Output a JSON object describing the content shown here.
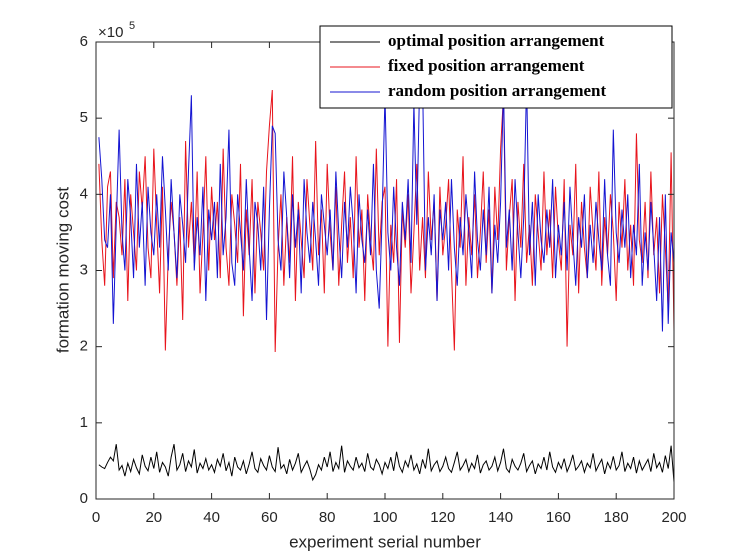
{
  "chart_data": {
    "type": "line",
    "xlabel": "experiment serial number",
    "ylabel": "formation moving cost",
    "yscale_base": "×10",
    "yscale_exponent": "5",
    "xlim": [
      0,
      200
    ],
    "xticks": [
      0,
      20,
      40,
      60,
      80,
      100,
      120,
      140,
      160,
      180,
      200
    ],
    "ylim": [
      0,
      6
    ],
    "yticks": [
      0,
      1,
      2,
      3,
      4,
      5,
      6
    ],
    "grid": false,
    "legend": "upper right",
    "x": [
      1,
      2,
      3,
      4,
      5,
      6,
      7,
      8,
      9,
      10,
      11,
      12,
      13,
      14,
      15,
      16,
      17,
      18,
      19,
      20,
      21,
      22,
      23,
      24,
      25,
      26,
      27,
      28,
      29,
      30,
      31,
      32,
      33,
      34,
      35,
      36,
      37,
      38,
      39,
      40,
      41,
      42,
      43,
      44,
      45,
      46,
      47,
      48,
      49,
      50,
      51,
      52,
      53,
      54,
      55,
      56,
      57,
      58,
      59,
      60,
      61,
      62,
      63,
      64,
      65,
      66,
      67,
      68,
      69,
      70,
      71,
      72,
      73,
      74,
      75,
      76,
      77,
      78,
      79,
      80,
      81,
      82,
      83,
      84,
      85,
      86,
      87,
      88,
      89,
      90,
      91,
      92,
      93,
      94,
      95,
      96,
      97,
      98,
      99,
      100,
      101,
      102,
      103,
      104,
      105,
      106,
      107,
      108,
      109,
      110,
      111,
      112,
      113,
      114,
      115,
      116,
      117,
      118,
      119,
      120,
      121,
      122,
      123,
      124,
      125,
      126,
      127,
      128,
      129,
      130,
      131,
      132,
      133,
      134,
      135,
      136,
      137,
      138,
      139,
      140,
      141,
      142,
      143,
      144,
      145,
      146,
      147,
      148,
      149,
      150,
      151,
      152,
      153,
      154,
      155,
      156,
      157,
      158,
      159,
      160,
      161,
      162,
      163,
      164,
      165,
      166,
      167,
      168,
      169,
      170,
      171,
      172,
      173,
      174,
      175,
      176,
      177,
      178,
      179,
      180,
      181,
      182,
      183,
      184,
      185,
      186,
      187,
      188,
      189,
      190,
      191,
      192,
      193,
      194,
      195,
      196,
      197,
      198,
      199,
      200
    ],
    "series": [
      {
        "name": "optimal position arrangement",
        "color": "#000000",
        "values": [
          0.45,
          0.42,
          0.4,
          0.48,
          0.55,
          0.5,
          0.72,
          0.38,
          0.44,
          0.3,
          0.47,
          0.36,
          0.52,
          0.41,
          0.33,
          0.58,
          0.43,
          0.37,
          0.55,
          0.4,
          0.62,
          0.35,
          0.48,
          0.42,
          0.3,
          0.55,
          0.72,
          0.38,
          0.45,
          0.6,
          0.36,
          0.5,
          0.42,
          0.65,
          0.34,
          0.47,
          0.4,
          0.53,
          0.38,
          0.45,
          0.35,
          0.52,
          0.43,
          0.6,
          0.37,
          0.48,
          0.3,
          0.55,
          0.42,
          0.38,
          0.5,
          0.33,
          0.46,
          0.62,
          0.4,
          0.35,
          0.53,
          0.44,
          0.38,
          0.57,
          0.42,
          0.36,
          0.68,
          0.4,
          0.45,
          0.33,
          0.52,
          0.38,
          0.47,
          0.6,
          0.35,
          0.43,
          0.5,
          0.39,
          0.25,
          0.32,
          0.45,
          0.38,
          0.55,
          0.42,
          0.62,
          0.36,
          0.48,
          0.4,
          0.7,
          0.35,
          0.5,
          0.43,
          0.38,
          0.55,
          0.41,
          0.47,
          0.36,
          0.6,
          0.42,
          0.38,
          0.52,
          0.45,
          0.33,
          0.48,
          0.4,
          0.55,
          0.37,
          0.62,
          0.43,
          0.35,
          0.5,
          0.42,
          0.58,
          0.38,
          0.46,
          0.33,
          0.52,
          0.4,
          0.66,
          0.37,
          0.45,
          0.5,
          0.36,
          0.43,
          0.55,
          0.4,
          0.35,
          0.48,
          0.62,
          0.38,
          0.44,
          0.52,
          0.36,
          0.47,
          0.4,
          0.58,
          0.34,
          0.45,
          0.5,
          0.38,
          0.43,
          0.55,
          0.37,
          0.48,
          0.66,
          0.4,
          0.35,
          0.52,
          0.43,
          0.38,
          0.47,
          0.6,
          0.36,
          0.44,
          0.5,
          0.33,
          0.46,
          0.4,
          0.55,
          0.38,
          0.62,
          0.42,
          0.35,
          0.48,
          0.4,
          0.53,
          0.36,
          0.45,
          0.58,
          0.38,
          0.43,
          0.5,
          0.35,
          0.47,
          0.41,
          0.6,
          0.37,
          0.45,
          0.52,
          0.33,
          0.48,
          0.4,
          0.56,
          0.38,
          0.44,
          0.62,
          0.36,
          0.47,
          0.4,
          0.55,
          0.34,
          0.5,
          0.38,
          0.45,
          0.52,
          0.36,
          0.6,
          0.41,
          0.48,
          0.35,
          0.57,
          0.4,
          0.7,
          0.22
        ]
      },
      {
        "name": "fixed position arrangement",
        "color": "#e8141c",
        "values": [
          4.4,
          3.4,
          2.8,
          4.1,
          4.3,
          2.9,
          3.9,
          3.7,
          3.2,
          4.2,
          2.6,
          4.0,
          3.5,
          3.0,
          4.3,
          3.8,
          4.5,
          3.3,
          2.9,
          4.6,
          3.6,
          2.7,
          4.1,
          1.95,
          3.2,
          3.9,
          3.5,
          2.8,
          3.7,
          2.35,
          4.7,
          3.3,
          3.9,
          3.1,
          4.3,
          2.7,
          3.5,
          4.5,
          3.0,
          4.1,
          3.4,
          3.9,
          2.9,
          4.6,
          3.3,
          2.8,
          4.0,
          3.6,
          3.1,
          4.4,
          2.4,
          3.8,
          3.2,
          4.2,
          2.7,
          3.9,
          3.5,
          3.0,
          4.3,
          4.9,
          5.37,
          1.93,
          3.3,
          4.0,
          2.8,
          3.7,
          3.1,
          4.5,
          2.6,
          3.9,
          3.4,
          2.9,
          4.2,
          3.6,
          3.0,
          4.7,
          3.2,
          3.8,
          2.7,
          4.4,
          3.5,
          3.0,
          4.1,
          2.8,
          3.6,
          4.3,
          3.1,
          3.7,
          2.9,
          4.5,
          3.3,
          3.8,
          2.6,
          4.0,
          3.4,
          3.0,
          4.6,
          3.2,
          3.9,
          4.1,
          2.0,
          3.6,
          3.1,
          4.2,
          2.05,
          3.8,
          3.3,
          4.0,
          2.7,
          3.5,
          4.4,
          3.0,
          3.7,
          2.9,
          4.3,
          3.4,
          3.9,
          2.6,
          4.1,
          3.2,
          3.6,
          4.2,
          3.0,
          1.95,
          3.8,
          3.3,
          4.5,
          2.8,
          3.7,
          3.2,
          4.0,
          2.9,
          3.5,
          4.3,
          3.1,
          3.8,
          2.7,
          4.1,
          3.4,
          4.6,
          5.3,
          3.0,
          3.7,
          4.2,
          2.6,
          3.9,
          3.3,
          4.4,
          3.1,
          3.6,
          2.8,
          4.0,
          3.5,
          3.0,
          4.3,
          3.2,
          3.8,
          2.9,
          4.1,
          3.4,
          3.0,
          4.2,
          2.0,
          3.6,
          3.2,
          4.4,
          2.7,
          3.9,
          3.3,
          2.9,
          4.1,
          3.5,
          3.0,
          4.3,
          2.8,
          3.7,
          3.2,
          4.0,
          3.5,
          2.6,
          3.9,
          3.3,
          4.2,
          3.0,
          3.6,
          2.8,
          4.8,
          3.4,
          3.1,
          3.9,
          2.9,
          4.3,
          3.2,
          3.7,
          2.7,
          4.0,
          3.3,
          2.5,
          4.55,
          2.2
        ]
      },
      {
        "name": "random position arrangement",
        "color": "#1414d2",
        "values": [
          4.75,
          4.2,
          3.4,
          3.3,
          4.0,
          2.3,
          3.6,
          4.85,
          3.5,
          3.0,
          4.2,
          3.7,
          2.9,
          4.4,
          3.3,
          3.9,
          2.8,
          4.1,
          3.5,
          3.2,
          4.0,
          3.3,
          4.5,
          3.8,
          3.0,
          4.2,
          3.5,
          2.9,
          4.0,
          3.6,
          3.1,
          4.3,
          5.3,
          3.0,
          3.7,
          3.2,
          4.1,
          2.6,
          3.8,
          3.4,
          3.9,
          2.9,
          4.4,
          3.2,
          3.7,
          4.85,
          3.1,
          2.8,
          4.0,
          3.5,
          3.0,
          4.2,
          3.3,
          2.6,
          3.9,
          3.6,
          3.0,
          4.1,
          2.35,
          3.8,
          4.9,
          4.8,
          3.4,
          3.0,
          4.3,
          3.7,
          2.9,
          4.0,
          3.3,
          3.8,
          2.7,
          4.2,
          3.5,
          3.1,
          3.9,
          3.4,
          2.8,
          4.0,
          3.6,
          3.2,
          3.8,
          3.0,
          4.3,
          3.5,
          2.9,
          3.9,
          3.3,
          4.1,
          3.6,
          2.7,
          4.0,
          3.4,
          3.1,
          3.8,
          3.2,
          4.4,
          3.0,
          2.5,
          3.7,
          5.3,
          3.5,
          3.0,
          4.1,
          3.3,
          2.8,
          3.9,
          3.4,
          4.2,
          3.1,
          5.2,
          3.6,
          5.5,
          5.5,
          3.0,
          3.7,
          3.2,
          4.0,
          2.6,
          3.8,
          3.4,
          3.9,
          3.0,
          4.2,
          3.3,
          2.8,
          3.7,
          3.2,
          4.0,
          3.5,
          2.9,
          4.3,
          3.4,
          3.0,
          3.8,
          3.2,
          4.1,
          2.7,
          3.6,
          3.1,
          3.9,
          5.4,
          3.3,
          3.8,
          3.0,
          4.2,
          3.5,
          2.9,
          3.7,
          5.5,
          3.2,
          3.9,
          2.8,
          4.0,
          3.4,
          3.1,
          3.8,
          3.3,
          4.2,
          2.9,
          3.6,
          3.2,
          3.9,
          3.0,
          4.1,
          3.4,
          2.8,
          3.7,
          3.3,
          4.0,
          2.9,
          3.6,
          3.1,
          3.9,
          3.4,
          3.0,
          4.2,
          3.2,
          2.8,
          4.85,
          3.5,
          3.1,
          3.8,
          3.3,
          4.0,
          2.9,
          3.6,
          3.2,
          4.4,
          2.8,
          3.5,
          3.0,
          3.9,
          3.3,
          2.6,
          3.7,
          2.2,
          4.0,
          2.3,
          3.5,
          3.1
        ]
      }
    ]
  }
}
